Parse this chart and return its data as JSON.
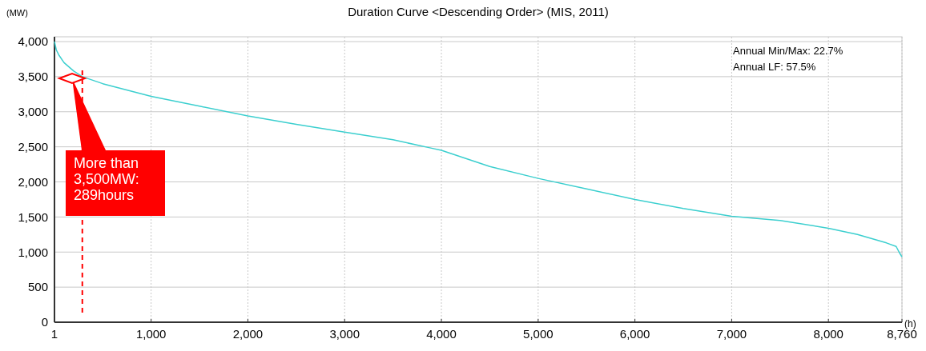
{
  "chart_data": {
    "type": "line",
    "title": "Duration Curve <Descending Order> (MIS, 2011)",
    "xlabel": "(h)",
    "ylabel": "(MW)",
    "xlim": [
      1,
      8760
    ],
    "xticks": [
      1,
      {
        "value": 1000,
        "label": "1,000"
      },
      {
        "value": 2000,
        "label": "2,000"
      },
      {
        "value": 3000,
        "label": "3,000"
      },
      {
        "value": 4000,
        "label": "4,000"
      },
      {
        "value": 5000,
        "label": "5,000"
      },
      {
        "value": 6000,
        "label": "6,000"
      },
      {
        "value": 7000,
        "label": "7,000"
      },
      {
        "value": 8000,
        "label": "8,000"
      },
      {
        "value": 8760,
        "label": "8,760"
      }
    ],
    "ylim": [
      0,
      4000
    ],
    "yticks": [
      0,
      500,
      {
        "value": 1000,
        "label": "1,000"
      },
      {
        "value": 1500,
        "label": "1,500"
      },
      {
        "value": 2000,
        "label": "2,000"
      },
      {
        "value": 2500,
        "label": "2,500"
      },
      {
        "value": 3000,
        "label": "3,000"
      },
      {
        "value": 3500,
        "label": "3,500"
      },
      {
        "value": 4000,
        "label": "4,000"
      }
    ],
    "grid": true,
    "marker": "none",
    "line_style": "solid",
    "series": [
      {
        "color": "#3ccfcf",
        "x": [
          1,
          20,
          50,
          100,
          200,
          289,
          500,
          1000,
          1500,
          2000,
          2500,
          3000,
          3500,
          3900,
          4000,
          4500,
          5000,
          5500,
          6000,
          6500,
          7000,
          7500,
          8000,
          8300,
          8600,
          8700,
          8730,
          8760
        ],
        "values": [
          4000,
          3880,
          3800,
          3700,
          3580,
          3500,
          3400,
          3220,
          3080,
          2940,
          2820,
          2710,
          2600,
          2480,
          2450,
          2220,
          2050,
          1900,
          1750,
          1620,
          1510,
          1450,
          1340,
          1250,
          1130,
          1080,
          1000,
          930
        ]
      }
    ],
    "ref_lines": [
      {
        "axis": "x",
        "value": 289,
        "color": "#ff0000",
        "line_style": "dashed"
      }
    ],
    "annotations": [
      "More than 3,500MW: 289hours",
      "Annual Min/Max: 22.7%",
      "Annual LF: 57.5%"
    ]
  }
}
